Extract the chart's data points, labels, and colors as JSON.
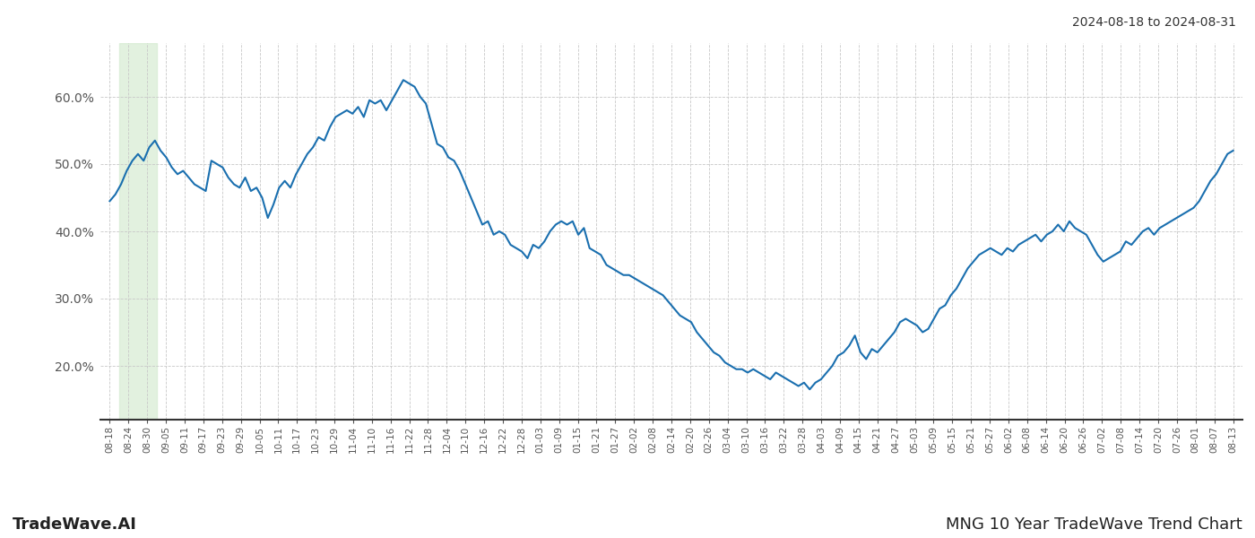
{
  "title_top_right": "2024-08-18 to 2024-08-31",
  "title_bottom_left": "TradeWave.AI",
  "title_bottom_right": "MNG 10 Year TradeWave Trend Chart",
  "line_color": "#1a6faf",
  "background_color": "#ffffff",
  "grid_color": "#c8c8c8",
  "highlight_color": "#d6ecd2",
  "highlight_alpha": 0.7,
  "ylim": [
    12,
    68
  ],
  "yticks": [
    20.0,
    30.0,
    40.0,
    50.0,
    60.0
  ],
  "xlabel_fontsize": 7.5,
  "ylabel_fontsize": 10,
  "line_width": 1.5,
  "x_labels": [
    "08-18",
    "08-24",
    "08-30",
    "09-05",
    "09-11",
    "09-17",
    "09-23",
    "09-29",
    "10-05",
    "10-11",
    "10-17",
    "10-23",
    "10-29",
    "11-04",
    "11-10",
    "11-16",
    "11-22",
    "11-28",
    "12-04",
    "12-10",
    "12-16",
    "12-22",
    "12-28",
    "01-03",
    "01-09",
    "01-15",
    "01-21",
    "01-27",
    "02-02",
    "02-08",
    "02-14",
    "02-20",
    "02-26",
    "03-04",
    "03-10",
    "03-16",
    "03-22",
    "03-28",
    "04-03",
    "04-09",
    "04-15",
    "04-21",
    "04-27",
    "05-03",
    "05-09",
    "05-15",
    "05-21",
    "05-27",
    "06-02",
    "06-08",
    "06-14",
    "06-20",
    "06-26",
    "07-02",
    "07-08",
    "07-14",
    "07-20",
    "07-26",
    "08-01",
    "08-07",
    "08-13"
  ],
  "highlight_xstart": 0.5,
  "highlight_xend": 2.5,
  "data_y": [
    44.5,
    45.5,
    47.0,
    49.0,
    50.5,
    51.5,
    50.5,
    52.5,
    53.5,
    52.0,
    51.0,
    49.5,
    48.5,
    49.0,
    48.0,
    47.0,
    46.5,
    46.0,
    50.5,
    50.0,
    49.5,
    48.0,
    47.0,
    46.5,
    48.0,
    46.0,
    46.5,
    45.0,
    42.0,
    44.0,
    46.5,
    47.5,
    46.5,
    48.5,
    50.0,
    51.5,
    52.5,
    54.0,
    53.5,
    55.5,
    57.0,
    57.5,
    58.0,
    57.5,
    58.5,
    57.0,
    59.5,
    59.0,
    59.5,
    58.0,
    59.5,
    61.0,
    62.5,
    62.0,
    61.5,
    60.0,
    59.0,
    56.0,
    53.0,
    52.5,
    51.0,
    50.5,
    49.0,
    47.0,
    45.0,
    43.0,
    41.0,
    41.5,
    39.5,
    40.0,
    39.5,
    38.0,
    37.5,
    37.0,
    36.0,
    38.0,
    37.5,
    38.5,
    40.0,
    41.0,
    41.5,
    41.0,
    41.5,
    39.5,
    40.5,
    37.5,
    37.0,
    36.5,
    35.0,
    34.5,
    34.0,
    33.5,
    33.5,
    33.0,
    32.5,
    32.0,
    31.5,
    31.0,
    30.5,
    29.5,
    28.5,
    27.5,
    27.0,
    26.5,
    25.0,
    24.0,
    23.0,
    22.0,
    21.5,
    20.5,
    20.0,
    19.5,
    19.5,
    19.0,
    19.5,
    19.0,
    18.5,
    18.0,
    19.0,
    18.5,
    18.0,
    17.5,
    17.0,
    17.5,
    16.5,
    17.5,
    18.0,
    19.0,
    20.0,
    21.5,
    22.0,
    23.0,
    24.5,
    22.0,
    21.0,
    22.5,
    22.0,
    23.0,
    24.0,
    25.0,
    26.5,
    27.0,
    26.5,
    26.0,
    25.0,
    25.5,
    27.0,
    28.5,
    29.0,
    30.5,
    31.5,
    33.0,
    34.5,
    35.5,
    36.5,
    37.0,
    37.5,
    37.0,
    36.5,
    37.5,
    37.0,
    38.0,
    38.5,
    39.0,
    39.5,
    38.5,
    39.5,
    40.0,
    41.0,
    40.0,
    41.5,
    40.5,
    40.0,
    39.5,
    38.0,
    36.5,
    35.5,
    36.0,
    36.5,
    37.0,
    38.5,
    38.0,
    39.0,
    40.0,
    40.5,
    39.5,
    40.5,
    41.0,
    41.5,
    42.0,
    42.5,
    43.0,
    43.5,
    44.5,
    46.0,
    47.5,
    48.5,
    50.0,
    51.5,
    52.0
  ]
}
